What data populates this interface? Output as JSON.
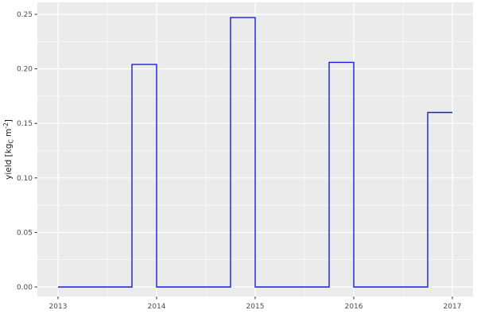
{
  "chart_data": {
    "type": "line",
    "step": "post",
    "title": "",
    "xlabel": "",
    "ylabel": "yield [kg_C m^-2]",
    "ylabel_parts": [
      {
        "text": "yield [kg"
      },
      {
        "text": "C",
        "style": "sub"
      },
      {
        "text": " m"
      },
      {
        "text": "-2",
        "style": "sup"
      },
      {
        "text": "]"
      }
    ],
    "series": [
      {
        "name": "yield",
        "color": "#1A1AE0",
        "points": [
          [
            2013,
            0
          ],
          [
            2013.75,
            0.204
          ],
          [
            2014,
            0
          ],
          [
            2014.75,
            0.247
          ],
          [
            2015,
            0
          ],
          [
            2015.75,
            0.206
          ],
          [
            2016,
            0
          ],
          [
            2016.75,
            0.16
          ],
          [
            2017,
            0.16
          ]
        ]
      }
    ],
    "xlim": [
      2013,
      2017
    ],
    "ylim": [
      0,
      0.25
    ],
    "x_ticks": [
      2013,
      2014,
      2015,
      2016,
      2017
    ],
    "x_tick_labels": [
      "2013",
      "2014",
      "2015",
      "2016",
      "2017"
    ],
    "x_minor_breaks": [
      2013.5,
      2014.5,
      2015.5,
      2016.5
    ],
    "y_ticks": [
      0,
      0.05,
      0.1,
      0.15,
      0.2,
      0.25
    ],
    "y_tick_labels": [
      "0.00",
      "0.05",
      "0.10",
      "0.15",
      "0.20",
      "0.25"
    ],
    "y_minor_breaks": [
      0.025,
      0.075,
      0.125,
      0.175,
      0.225
    ],
    "grid": "on",
    "legend": "none",
    "theme": {
      "panel_background": "#EBEBEB",
      "grid_major_color": "#FFFFFF",
      "grid_minor_color": "#FFFFFF",
      "axis_tick_color": "#333333",
      "axis_text_color": "#4D4D4D",
      "axis_title_color": "#1A1A1A",
      "outer_background": "#FFFFFF"
    }
  }
}
